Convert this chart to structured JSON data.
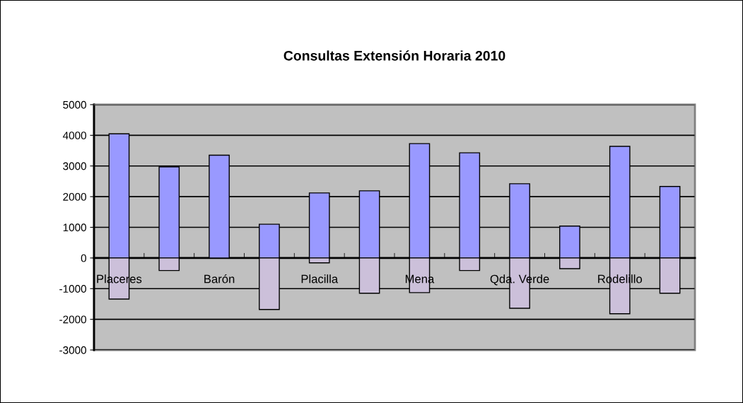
{
  "chart_data": {
    "type": "bar",
    "title": "Consultas Extensión Horaria 2010",
    "stacked": true,
    "categories": [
      "Placeres",
      null,
      "Barón",
      null,
      "Placilla",
      null,
      "Mena",
      null,
      "Qda. Verde",
      null,
      "Rodelillo",
      null
    ],
    "series": [
      {
        "color": "#9999ff",
        "values": [
          4050,
          2970,
          3350,
          1100,
          2120,
          2190,
          3730,
          3430,
          2420,
          1040,
          3640,
          2330
        ]
      },
      {
        "color": "#ccc0da",
        "values": [
          -1340,
          -410,
          0,
          -1680,
          -160,
          -1150,
          -1130,
          -410,
          -1640,
          -350,
          -1820,
          -1150
        ]
      }
    ],
    "ylim": [
      -3000,
      5000
    ],
    "yticks": [
      -3000,
      -2000,
      -1000,
      0,
      1000,
      2000,
      3000,
      4000,
      5000
    ],
    "grid": "y",
    "legend": false
  }
}
